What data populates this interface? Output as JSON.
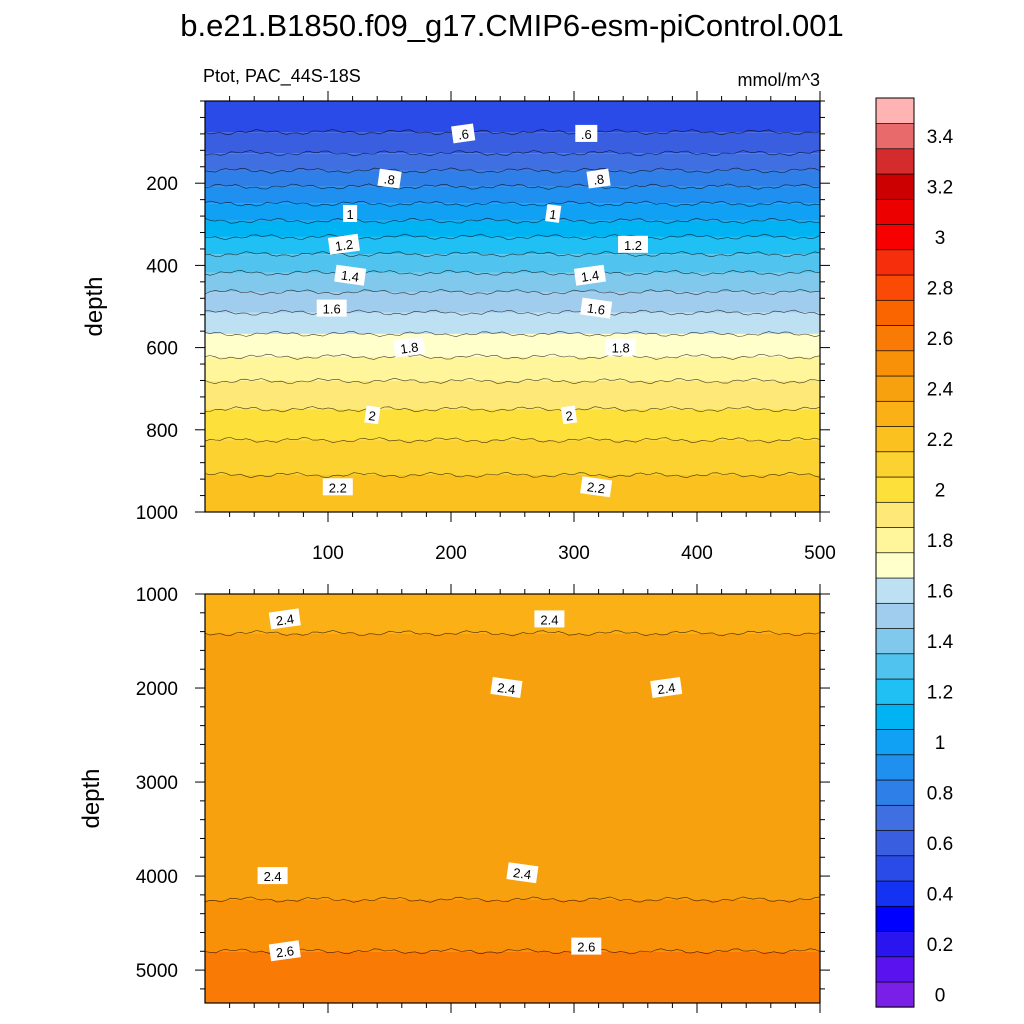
{
  "title": "b.e21.B1850.f09_g17.CMIP6-esm-piControl.001",
  "left_string": "Ptot, PAC_44S-18S",
  "right_string": "mmol/m^3",
  "colorbar": {
    "levels": [
      0,
      0.1,
      0.2,
      0.3,
      0.4,
      0.5,
      0.6,
      0.7,
      0.8,
      0.9,
      1,
      1.1,
      1.2,
      1.3,
      1.4,
      1.5,
      1.6,
      1.7,
      1.8,
      1.9,
      2,
      2.1,
      2.2,
      2.3,
      2.4,
      2.5,
      2.6,
      2.7,
      2.8,
      2.9,
      3,
      3.1,
      3.2,
      3.3,
      3.4,
      3.5
    ],
    "colors": [
      "#7a1fe8",
      "#5a12ee",
      "#2a14f0",
      "#0000ff",
      "#1432f2",
      "#2a4be8",
      "#3a5ee0",
      "#3f6fe0",
      "#2f7fe8",
      "#2090f0",
      "#10a0f4",
      "#00b4f4",
      "#20c0f4",
      "#50c4ee",
      "#80c8ec",
      "#a0cced",
      "#bde0f2",
      "#ffffcc",
      "#fff59a",
      "#fde878",
      "#fde03a",
      "#fcd230",
      "#fbc11f",
      "#fbb016",
      "#f8a10e",
      "#f89008",
      "#f97a04",
      "#fa6500",
      "#fa4a06",
      "#f72e0c",
      "#f80000",
      "#ed0000",
      "#cc0000",
      "#d42c2c",
      "#e96a6a",
      "#ffb3b3"
    ],
    "labels": [
      "0",
      "0.2",
      "0.4",
      "0.6",
      "0.8",
      "1",
      "1.2",
      "1.4",
      "1.6",
      "1.8",
      "2",
      "2.2",
      "2.4",
      "2.6",
      "2.8",
      "3",
      "3.2",
      "3.4"
    ]
  },
  "chart_data": [
    {
      "type": "heatmap",
      "title": "",
      "xlabel": "",
      "ylabel": "depth",
      "xlim": [
        0,
        500
      ],
      "ylim": [
        1000,
        0
      ],
      "xticks": [
        100,
        200,
        300,
        400,
        500
      ],
      "xtick_labels": [
        "100",
        "200",
        "300",
        "400",
        "500"
      ],
      "yticks": [
        200,
        400,
        600,
        800,
        1000
      ],
      "ytick_labels": [
        "200",
        "400",
        "600",
        "800",
        "1000"
      ],
      "profile": {
        "depth": [
          0,
          40,
          90,
          150,
          200,
          250,
          300,
          350,
          400,
          450,
          500,
          550,
          600,
          650,
          700,
          750,
          800,
          850,
          900,
          950,
          1000
        ],
        "value": [
          0.5,
          0.55,
          0.62,
          0.75,
          0.88,
          1.0,
          1.12,
          1.25,
          1.36,
          1.47,
          1.57,
          1.67,
          1.76,
          1.85,
          1.93,
          2.0,
          2.07,
          2.13,
          2.19,
          2.24,
          2.28
        ]
      },
      "contour_labels": [
        {
          "text": ".6",
          "x": 210,
          "depth": 80
        },
        {
          "text": ".6",
          "x": 310,
          "depth": 80
        },
        {
          "text": ".8",
          "x": 150,
          "depth": 190
        },
        {
          "text": ".8",
          "x": 320,
          "depth": 190
        },
        {
          "text": "1",
          "x": 118,
          "depth": 275
        },
        {
          "text": "1",
          "x": 283,
          "depth": 275
        },
        {
          "text": "1.2",
          "x": 113,
          "depth": 350
        },
        {
          "text": "1.2",
          "x": 348,
          "depth": 350
        },
        {
          "text": "1.4",
          "x": 118,
          "depth": 425
        },
        {
          "text": "1.4",
          "x": 313,
          "depth": 425
        },
        {
          "text": "1.6",
          "x": 103,
          "depth": 505
        },
        {
          "text": "1.6",
          "x": 318,
          "depth": 505
        },
        {
          "text": "1.8",
          "x": 166,
          "depth": 600
        },
        {
          "text": "1.8",
          "x": 338,
          "depth": 600
        },
        {
          "text": "2",
          "x": 136,
          "depth": 765
        },
        {
          "text": "2",
          "x": 296,
          "depth": 765
        },
        {
          "text": "2.2",
          "x": 108,
          "depth": 940
        },
        {
          "text": "2.2",
          "x": 318,
          "depth": 940
        }
      ]
    },
    {
      "type": "heatmap",
      "title": "",
      "xlabel": "",
      "ylabel": "depth",
      "xlim": [
        0,
        500
      ],
      "ylim": [
        5350,
        1000
      ],
      "xticks": [
        100,
        200,
        300,
        400,
        500
      ],
      "yticks": [
        1000,
        2000,
        3000,
        4000,
        5000
      ],
      "ytick_labels": [
        "1000",
        "2000",
        "3000",
        "4000",
        "5000"
      ],
      "profile": {
        "depth": [
          1000,
          1500,
          2000,
          2500,
          3000,
          3500,
          4000,
          4500,
          4800,
          5100,
          5350
        ],
        "value": [
          2.35,
          2.41,
          2.44,
          2.45,
          2.45,
          2.45,
          2.47,
          2.53,
          2.6,
          2.66,
          2.7
        ]
      },
      "contour_labels": [
        {
          "text": "2.4",
          "x": 65,
          "depth": 1270
        },
        {
          "text": "2.4",
          "x": 280,
          "depth": 1270
        },
        {
          "text": "2.4",
          "x": 245,
          "depth": 2000
        },
        {
          "text": "2.4",
          "x": 375,
          "depth": 2000
        },
        {
          "text": "2.4",
          "x": 55,
          "depth": 4000
        },
        {
          "text": "2.4",
          "x": 258,
          "depth": 3970
        },
        {
          "text": "2.6",
          "x": 65,
          "depth": 4800
        },
        {
          "text": "2.6",
          "x": 310,
          "depth": 4750
        }
      ]
    }
  ]
}
